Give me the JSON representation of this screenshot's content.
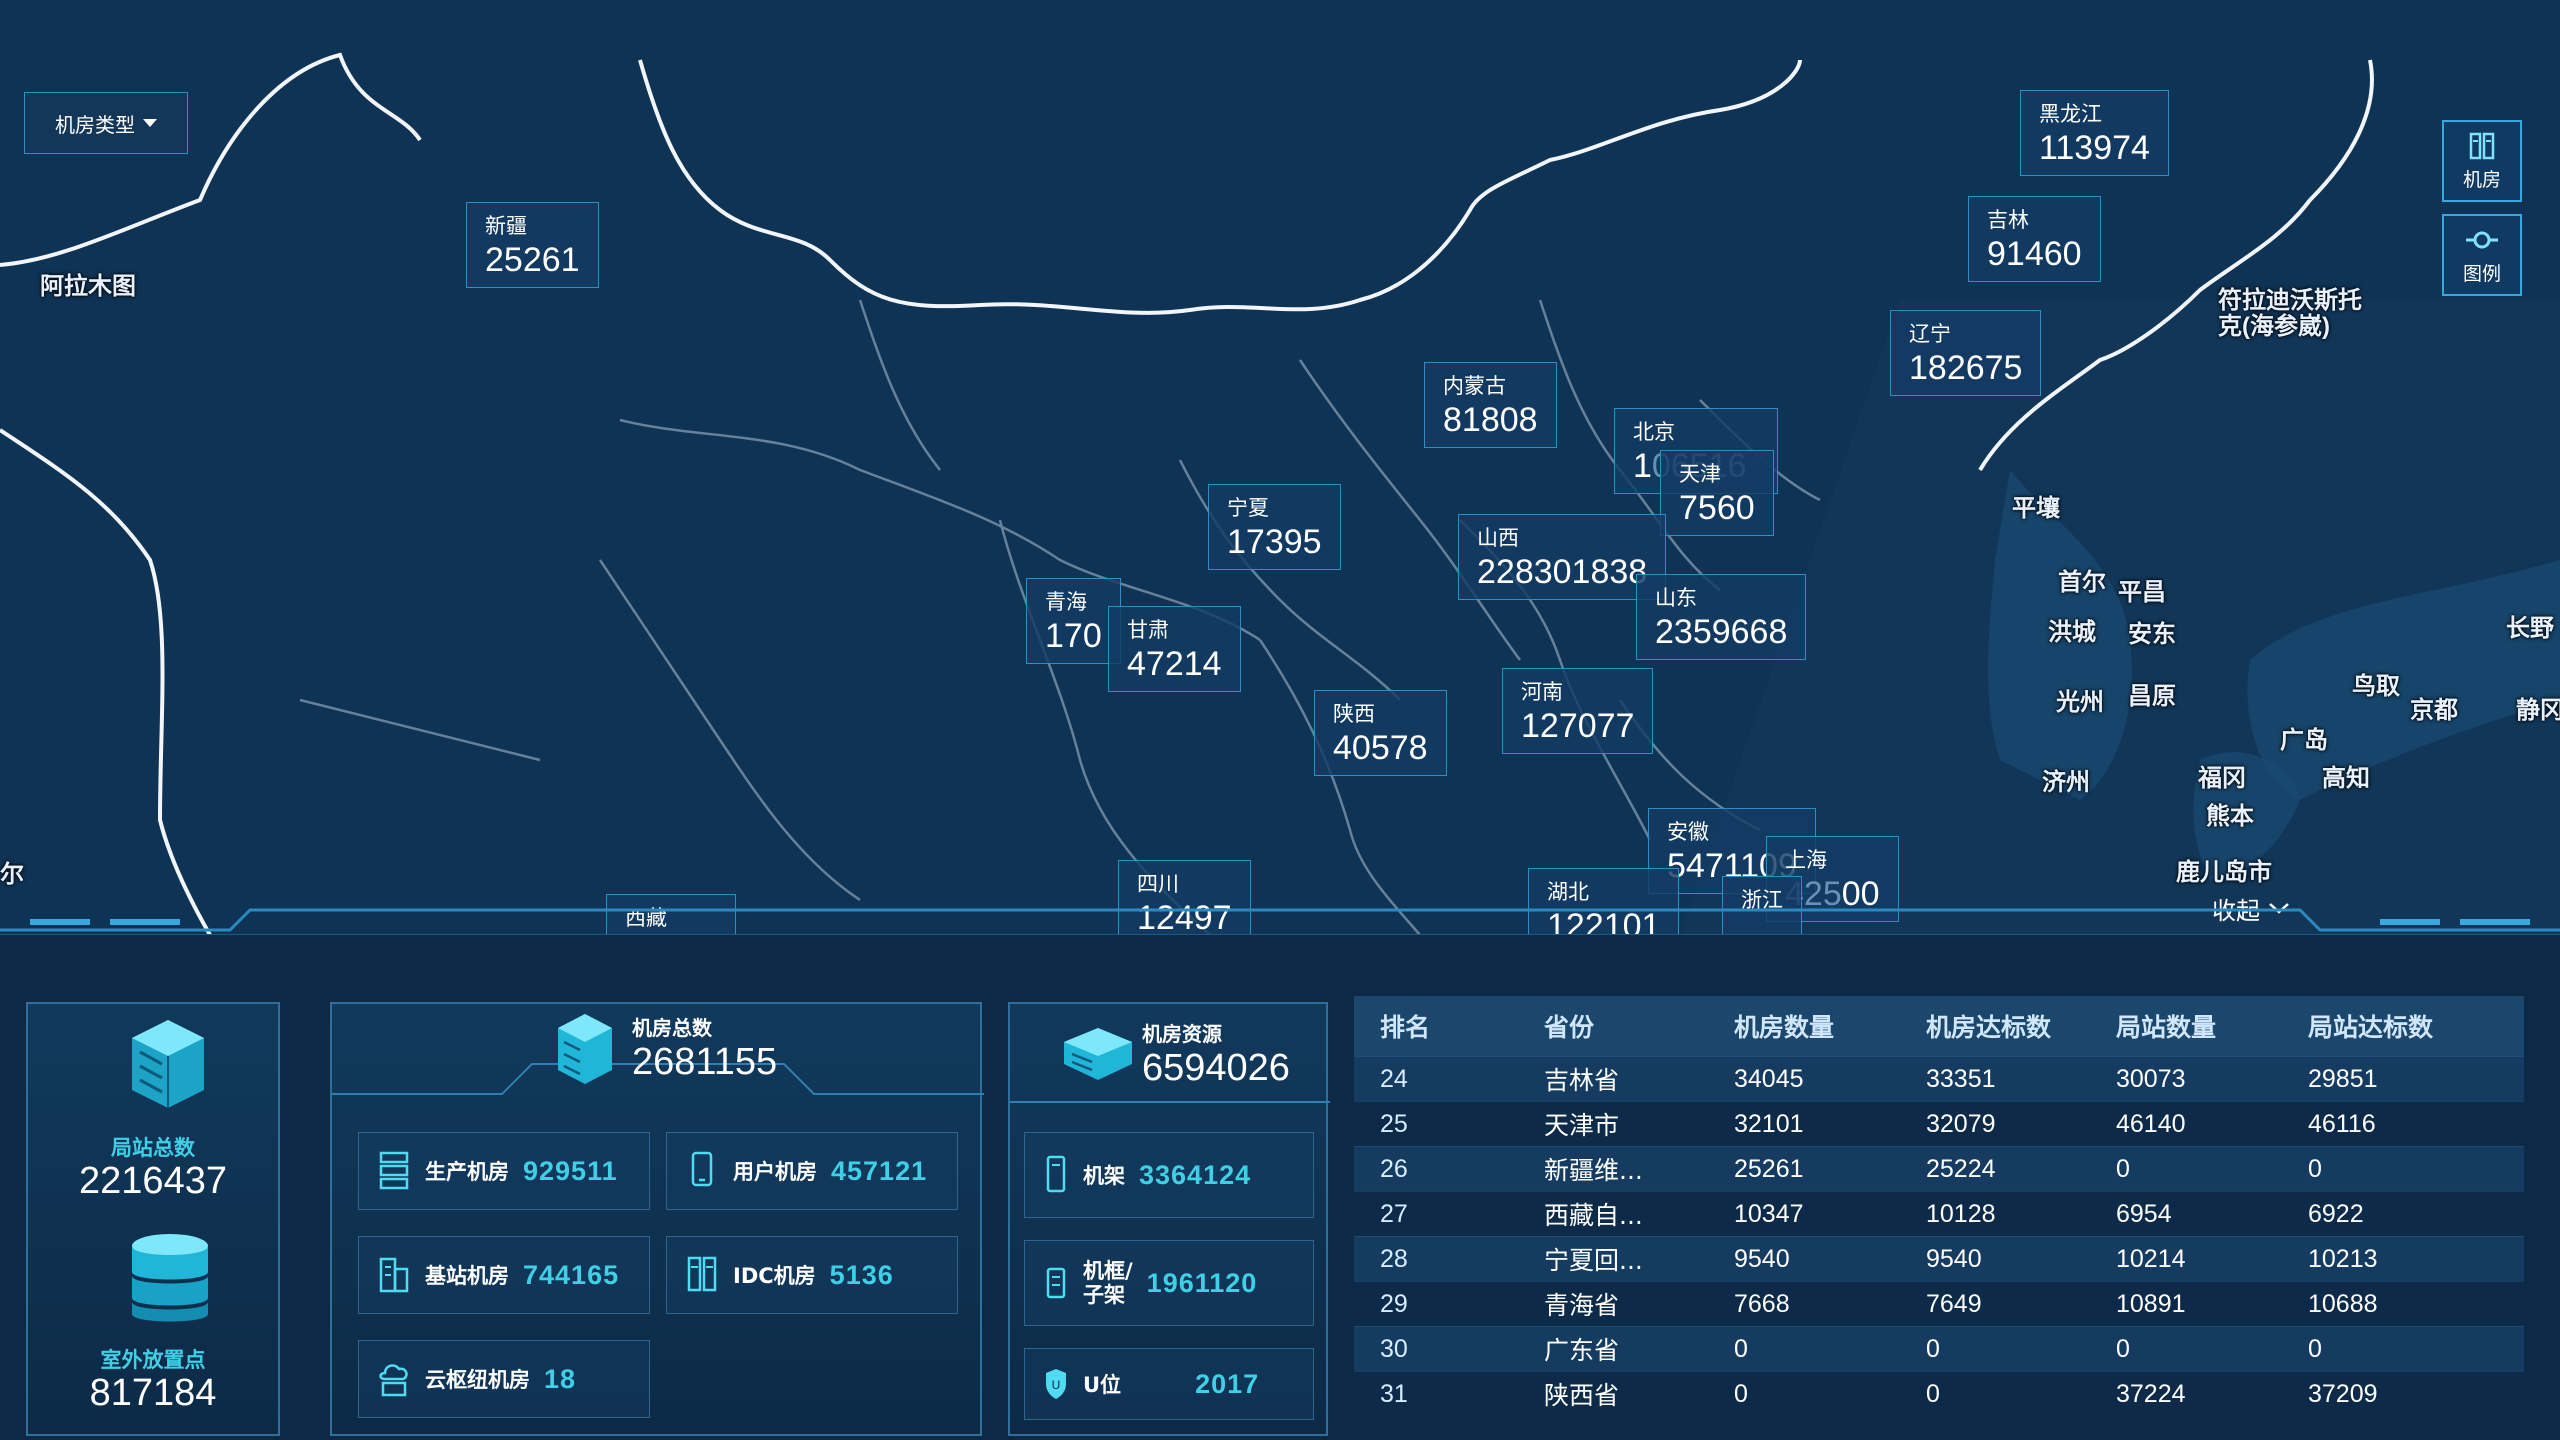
{
  "map": {
    "room_type_dropdown": "机房类型",
    "legend_buttons": [
      {
        "label": "机房",
        "icon": "server-rack-icon"
      },
      {
        "label": "图例",
        "icon": "legend-icon"
      }
    ],
    "collapse_label": "收起",
    "places": [
      "阿拉木图",
      "符拉迪沃斯托克(海参崴)",
      "平壤",
      "首尔",
      "平昌",
      "洪城",
      "安东",
      "光州",
      "昌原",
      "济州",
      "福冈",
      "熊本",
      "鹿儿岛市",
      "广岛",
      "高知",
      "鸟取",
      "京都",
      "长野",
      "静冈",
      "尔"
    ],
    "provinces": [
      {
        "name": "新疆",
        "value": "25261"
      },
      {
        "name": "黑龙江",
        "value": "113974"
      },
      {
        "name": "吉林",
        "value": "91460"
      },
      {
        "name": "辽宁",
        "value": "182675"
      },
      {
        "name": "内蒙古",
        "value": "81808"
      },
      {
        "name": "北京",
        "value": "1",
        "value_faded": "06516"
      },
      {
        "name": "天津",
        "value": "7560"
      },
      {
        "name": "宁夏",
        "value": "17395"
      },
      {
        "name": "山西",
        "value": "228301",
        "value_tail": "838"
      },
      {
        "name": "山东",
        "value": "2359668"
      },
      {
        "name": "青海",
        "value": "170"
      },
      {
        "name": "甘肃",
        "value": "47214"
      },
      {
        "name": "陕西",
        "value": "40578"
      },
      {
        "name": "河南",
        "value": "127077"
      },
      {
        "name": "安徽",
        "value": "54711",
        "value_tail": "09"
      },
      {
        "name": "上海",
        "value": "00",
        "value_faded": "425"
      },
      {
        "name": "浙江",
        "value": ""
      },
      {
        "name": "湖北",
        "value": "122101"
      },
      {
        "name": "四川",
        "value": "12497"
      },
      {
        "name": "西藏",
        "value": ""
      }
    ]
  },
  "stats": {
    "station_total_label": "局站总数",
    "station_total_value": "2216437",
    "outdoor_label": "室外放置点",
    "outdoor_value": "817184",
    "room_total_label": "机房总数",
    "room_total_value": "2681155",
    "room_types": [
      {
        "label": "生产机房",
        "value": "929511",
        "icon": "server-stack-icon"
      },
      {
        "label": "用户机房",
        "value": "457121",
        "icon": "phone-icon"
      },
      {
        "label": "基站机房",
        "value": "744165",
        "icon": "building-icon"
      },
      {
        "label": "IDC机房",
        "value": "5136",
        "icon": "server-cabinet-icon"
      },
      {
        "label": "云枢纽机房",
        "value": "18",
        "icon": "cloud-server-icon"
      }
    ],
    "resource_label": "机房资源",
    "resource_value": "6594026",
    "resources": [
      {
        "label": "机架",
        "value": "3364124",
        "icon": "rack-icon"
      },
      {
        "label": "机框/子架",
        "label_line1": "机框/",
        "label_line2": "子架",
        "value": "1961120",
        "icon": "frame-icon"
      },
      {
        "label": "U位",
        "value": "2017",
        "icon": "shield-icon"
      }
    ]
  },
  "ranking": {
    "headers": [
      "排名",
      "省份",
      "机房数量",
      "机房达标数",
      "局站数量",
      "局站达标数"
    ],
    "rows": [
      [
        "24",
        "吉林省",
        "34045",
        "33351",
        "30073",
        "29851"
      ],
      [
        "25",
        "天津市",
        "32101",
        "32079",
        "46140",
        "46116"
      ],
      [
        "26",
        "新疆维...",
        "25261",
        "25224",
        "0",
        "0"
      ],
      [
        "27",
        "西藏自...",
        "10347",
        "10128",
        "6954",
        "6922"
      ],
      [
        "28",
        "宁夏回...",
        "9540",
        "9540",
        "10214",
        "10213"
      ],
      [
        "29",
        "青海省",
        "7668",
        "7649",
        "10891",
        "10688"
      ],
      [
        "30",
        "广东省",
        "0",
        "0",
        "0",
        "0"
      ],
      [
        "31",
        "陕西省",
        "0",
        "0",
        "37224",
        "37209"
      ]
    ]
  },
  "colors": {
    "background": "#0a2540",
    "map": "#0f3354",
    "accent": "#3fd0e8",
    "border": "#2f8fc4"
  }
}
